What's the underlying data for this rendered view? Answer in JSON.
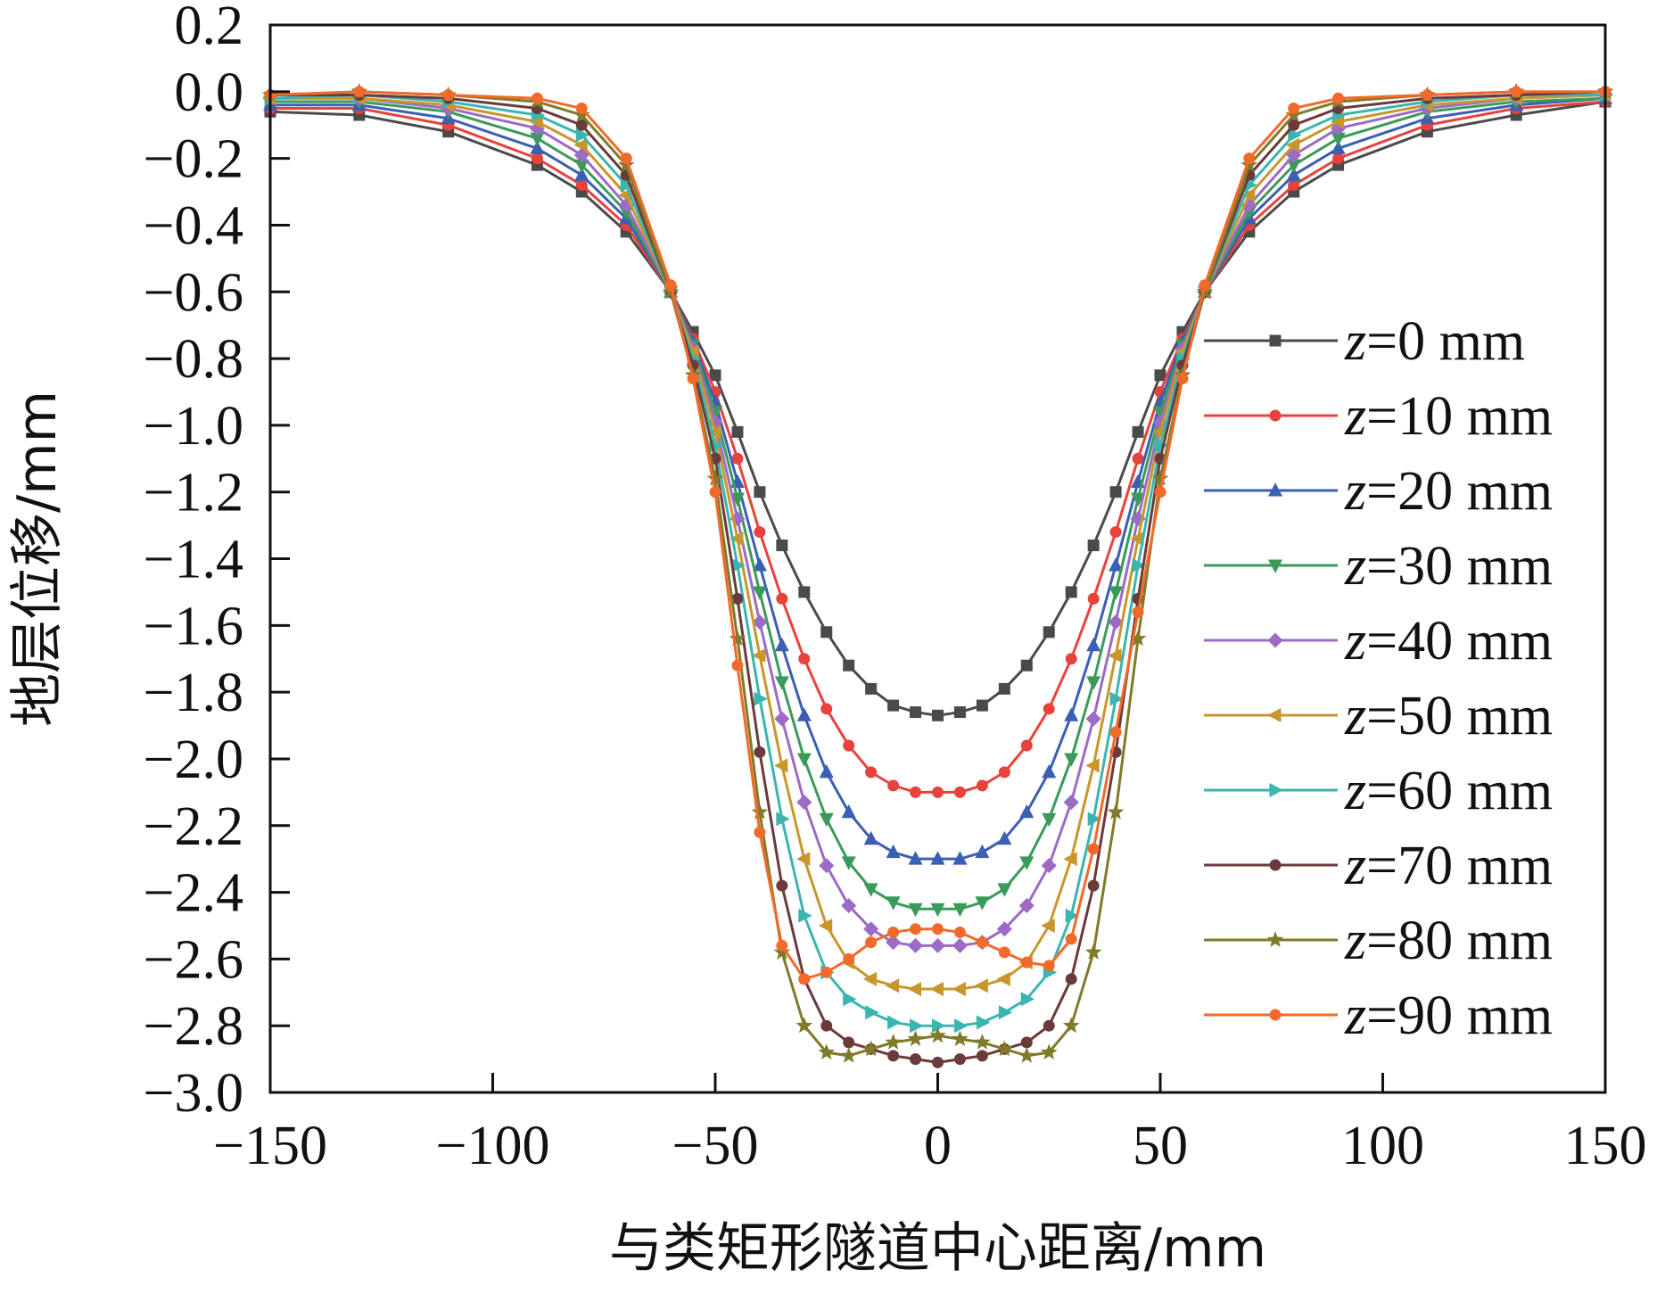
{
  "chart_data": {
    "type": "line",
    "xlabel": "与类矩形隧道中心距离/mm",
    "ylabel": "地层位移/mm",
    "xlim": [
      -150,
      150
    ],
    "ylim": [
      -3.0,
      0.2
    ],
    "x_ticks": [
      -150,
      -100,
      -50,
      0,
      50,
      100,
      150
    ],
    "y_ticks": [
      0.2,
      0.0,
      -0.2,
      -0.4,
      -0.6,
      -0.8,
      -1.0,
      -1.2,
      -1.4,
      -1.6,
      -1.8,
      -2.0,
      -2.2,
      -2.4,
      -2.6,
      -2.8,
      -3.0
    ],
    "x_tick_labels": [
      "−150",
      "−100",
      "−50",
      "0",
      "50",
      "100",
      "150"
    ],
    "y_tick_labels": [
      "0.2",
      "0.0",
      "−0.2",
      "−0.4",
      "−0.6",
      "−0.8",
      "−1.0",
      "−1.2",
      "−1.4",
      "−1.6",
      "−1.8",
      "−2.0",
      "−2.2",
      "−2.4",
      "−2.6",
      "−2.8",
      "−3.0"
    ],
    "grid": false,
    "legend_position": "right",
    "series": [
      {
        "name": "=0 mm",
        "prefix": "z",
        "color": "#4a4a4a",
        "marker": "square",
        "x": [
          -150,
          -130,
          -110,
          -90,
          -80,
          -70,
          -60,
          -55,
          -50,
          -45,
          -40,
          -35,
          -30,
          -25,
          -20,
          -15,
          -10,
          -5,
          0,
          5,
          10,
          15,
          20,
          25,
          30,
          35,
          40,
          45,
          50,
          55,
          60,
          70,
          80,
          90,
          110,
          130,
          150
        ],
        "y": [
          -0.06,
          -0.07,
          -0.12,
          -0.22,
          -0.3,
          -0.42,
          -0.6,
          -0.72,
          -0.85,
          -1.02,
          -1.2,
          -1.36,
          -1.5,
          -1.62,
          -1.72,
          -1.79,
          -1.84,
          -1.86,
          -1.87,
          -1.86,
          -1.84,
          -1.79,
          -1.72,
          -1.62,
          -1.5,
          -1.36,
          -1.2,
          -1.02,
          -0.85,
          -0.72,
          -0.6,
          -0.42,
          -0.3,
          -0.22,
          -0.12,
          -0.07,
          -0.03
        ]
      },
      {
        "name": "=10 mm",
        "prefix": "z",
        "color": "#e8423c",
        "marker": "circle",
        "x": [
          -150,
          -130,
          -110,
          -90,
          -80,
          -70,
          -60,
          -55,
          -50,
          -45,
          -40,
          -35,
          -30,
          -25,
          -20,
          -15,
          -10,
          -5,
          0,
          5,
          10,
          15,
          20,
          25,
          30,
          35,
          40,
          45,
          50,
          55,
          60,
          70,
          80,
          90,
          110,
          130,
          150
        ],
        "y": [
          -0.05,
          -0.05,
          -0.1,
          -0.2,
          -0.28,
          -0.4,
          -0.6,
          -0.74,
          -0.9,
          -1.1,
          -1.32,
          -1.52,
          -1.7,
          -1.85,
          -1.96,
          -2.04,
          -2.08,
          -2.1,
          -2.1,
          -2.1,
          -2.08,
          -2.04,
          -1.96,
          -1.85,
          -1.7,
          -1.52,
          -1.32,
          -1.1,
          -0.9,
          -0.74,
          -0.6,
          -0.4,
          -0.28,
          -0.2,
          -0.1,
          -0.05,
          -0.03
        ]
      },
      {
        "name": "=20 mm",
        "prefix": "z",
        "color": "#3a5fb3",
        "marker": "triangle-up",
        "x": [
          -150,
          -130,
          -110,
          -90,
          -80,
          -70,
          -60,
          -55,
          -50,
          -45,
          -40,
          -35,
          -30,
          -25,
          -20,
          -15,
          -10,
          -5,
          0,
          5,
          10,
          15,
          20,
          25,
          30,
          35,
          40,
          45,
          50,
          55,
          60,
          70,
          80,
          90,
          110,
          130,
          150
        ],
        "y": [
          -0.04,
          -0.04,
          -0.08,
          -0.17,
          -0.25,
          -0.38,
          -0.6,
          -0.75,
          -0.93,
          -1.17,
          -1.42,
          -1.66,
          -1.87,
          -2.04,
          -2.16,
          -2.24,
          -2.28,
          -2.3,
          -2.3,
          -2.3,
          -2.28,
          -2.24,
          -2.16,
          -2.04,
          -1.87,
          -1.66,
          -1.42,
          -1.17,
          -0.93,
          -0.75,
          -0.6,
          -0.38,
          -0.25,
          -0.17,
          -0.08,
          -0.04,
          -0.02
        ]
      },
      {
        "name": "=30 mm",
        "prefix": "z",
        "color": "#3b9a5a",
        "marker": "triangle-down",
        "x": [
          -150,
          -130,
          -110,
          -90,
          -80,
          -70,
          -60,
          -55,
          -50,
          -45,
          -40,
          -35,
          -30,
          -25,
          -20,
          -15,
          -10,
          -5,
          0,
          5,
          10,
          15,
          20,
          25,
          30,
          35,
          40,
          45,
          50,
          55,
          60,
          70,
          80,
          90,
          110,
          130,
          150
        ],
        "y": [
          -0.03,
          -0.03,
          -0.06,
          -0.14,
          -0.22,
          -0.36,
          -0.6,
          -0.76,
          -0.96,
          -1.22,
          -1.5,
          -1.77,
          -2.0,
          -2.18,
          -2.31,
          -2.39,
          -2.43,
          -2.45,
          -2.45,
          -2.45,
          -2.43,
          -2.39,
          -2.31,
          -2.18,
          -2.0,
          -1.77,
          -1.5,
          -1.22,
          -0.96,
          -0.76,
          -0.6,
          -0.36,
          -0.22,
          -0.14,
          -0.06,
          -0.03,
          -0.02
        ]
      },
      {
        "name": "=40 mm",
        "prefix": "z",
        "color": "#9b6bc6",
        "marker": "diamond",
        "x": [
          -150,
          -130,
          -110,
          -90,
          -80,
          -70,
          -60,
          -55,
          -50,
          -45,
          -40,
          -35,
          -30,
          -25,
          -20,
          -15,
          -10,
          -5,
          0,
          5,
          10,
          15,
          20,
          25,
          30,
          35,
          40,
          45,
          50,
          55,
          60,
          70,
          80,
          90,
          110,
          130,
          150
        ],
        "y": [
          -0.02,
          -0.02,
          -0.05,
          -0.11,
          -0.19,
          -0.34,
          -0.6,
          -0.77,
          -0.99,
          -1.28,
          -1.59,
          -1.88,
          -2.13,
          -2.32,
          -2.44,
          -2.51,
          -2.55,
          -2.56,
          -2.56,
          -2.56,
          -2.55,
          -2.51,
          -2.44,
          -2.32,
          -2.13,
          -1.88,
          -1.59,
          -1.28,
          -0.99,
          -0.77,
          -0.6,
          -0.34,
          -0.19,
          -0.11,
          -0.05,
          -0.02,
          -0.01
        ]
      },
      {
        "name": "=50 mm",
        "prefix": "z",
        "color": "#c9962c",
        "marker": "triangle-left",
        "x": [
          -150,
          -130,
          -110,
          -90,
          -80,
          -70,
          -60,
          -55,
          -50,
          -45,
          -40,
          -35,
          -30,
          -25,
          -20,
          -15,
          -10,
          -5,
          0,
          5,
          10,
          15,
          20,
          25,
          30,
          35,
          40,
          45,
          50,
          55,
          60,
          70,
          80,
          90,
          110,
          130,
          150
        ],
        "y": [
          -0.02,
          -0.02,
          -0.04,
          -0.09,
          -0.16,
          -0.31,
          -0.6,
          -0.78,
          -1.02,
          -1.34,
          -1.69,
          -2.02,
          -2.3,
          -2.5,
          -2.61,
          -2.66,
          -2.68,
          -2.69,
          -2.69,
          -2.69,
          -2.68,
          -2.66,
          -2.61,
          -2.5,
          -2.3,
          -2.02,
          -1.69,
          -1.34,
          -1.02,
          -0.78,
          -0.6,
          -0.31,
          -0.16,
          -0.09,
          -0.04,
          -0.02,
          -0.01
        ]
      },
      {
        "name": "=60 mm",
        "prefix": "z",
        "color": "#3bb5b0",
        "marker": "triangle-right",
        "x": [
          -150,
          -130,
          -110,
          -90,
          -80,
          -70,
          -60,
          -55,
          -50,
          -45,
          -40,
          -35,
          -30,
          -25,
          -20,
          -15,
          -10,
          -5,
          0,
          5,
          10,
          15,
          20,
          25,
          30,
          35,
          40,
          45,
          50,
          55,
          60,
          70,
          80,
          90,
          110,
          130,
          150
        ],
        "y": [
          -0.02,
          -0.01,
          -0.03,
          -0.07,
          -0.13,
          -0.28,
          -0.6,
          -0.8,
          -1.06,
          -1.42,
          -1.82,
          -2.18,
          -2.47,
          -2.64,
          -2.72,
          -2.76,
          -2.79,
          -2.8,
          -2.8,
          -2.8,
          -2.79,
          -2.76,
          -2.72,
          -2.64,
          -2.47,
          -2.18,
          -1.82,
          -1.42,
          -1.06,
          -0.8,
          -0.6,
          -0.28,
          -0.13,
          -0.07,
          -0.03,
          -0.01,
          -0.01
        ]
      },
      {
        "name": "=70 mm",
        "prefix": "z",
        "color": "#6b3a3a",
        "marker": "circle",
        "x": [
          -150,
          -130,
          -110,
          -90,
          -80,
          -70,
          -60,
          -55,
          -50,
          -45,
          -40,
          -35,
          -30,
          -25,
          -20,
          -15,
          -10,
          -5,
          0,
          5,
          10,
          15,
          20,
          25,
          30,
          35,
          40,
          45,
          50,
          55,
          60,
          70,
          80,
          90,
          110,
          130,
          150
        ],
        "y": [
          -0.01,
          -0.01,
          -0.02,
          -0.05,
          -0.1,
          -0.25,
          -0.6,
          -0.82,
          -1.1,
          -1.52,
          -1.98,
          -2.38,
          -2.66,
          -2.8,
          -2.85,
          -2.87,
          -2.89,
          -2.9,
          -2.91,
          -2.9,
          -2.89,
          -2.87,
          -2.85,
          -2.8,
          -2.66,
          -2.38,
          -1.98,
          -1.52,
          -1.1,
          -0.82,
          -0.6,
          -0.25,
          -0.1,
          -0.05,
          -0.02,
          -0.01,
          0.0
        ]
      },
      {
        "name": "=80 mm",
        "prefix": "z",
        "color": "#7f7b2a",
        "marker": "star",
        "x": [
          -150,
          -130,
          -110,
          -90,
          -80,
          -70,
          -60,
          -55,
          -50,
          -45,
          -40,
          -35,
          -30,
          -25,
          -20,
          -15,
          -10,
          -5,
          0,
          5,
          10,
          15,
          20,
          25,
          30,
          35,
          40,
          45,
          50,
          55,
          60,
          70,
          80,
          90,
          110,
          130,
          150
        ],
        "y": [
          -0.01,
          0.0,
          -0.01,
          -0.03,
          -0.07,
          -0.22,
          -0.6,
          -0.85,
          -1.16,
          -1.64,
          -2.16,
          -2.58,
          -2.8,
          -2.88,
          -2.89,
          -2.87,
          -2.85,
          -2.84,
          -2.83,
          -2.84,
          -2.85,
          -2.87,
          -2.89,
          -2.88,
          -2.8,
          -2.58,
          -2.16,
          -1.64,
          -1.16,
          -0.85,
          -0.6,
          -0.22,
          -0.07,
          -0.03,
          -0.01,
          0.0,
          0.0
        ]
      },
      {
        "name": "=90 mm",
        "prefix": "z",
        "color": "#f26a2a",
        "marker": "circle",
        "x": [
          -150,
          -130,
          -110,
          -90,
          -80,
          -70,
          -60,
          -55,
          -50,
          -45,
          -40,
          -35,
          -30,
          -25,
          -20,
          -15,
          -10,
          -5,
          0,
          5,
          10,
          15,
          20,
          25,
          30,
          35,
          40,
          45,
          50,
          55,
          60,
          70,
          80,
          90,
          110,
          130,
          150
        ],
        "y": [
          -0.01,
          0.0,
          -0.01,
          -0.02,
          -0.05,
          -0.2,
          -0.58,
          -0.86,
          -1.2,
          -1.72,
          -2.22,
          -2.56,
          -2.66,
          -2.64,
          -2.6,
          -2.55,
          -2.52,
          -2.51,
          -2.51,
          -2.52,
          -2.55,
          -2.58,
          -2.61,
          -2.62,
          -2.54,
          -2.27,
          -1.92,
          -1.56,
          -1.2,
          -0.86,
          -0.58,
          -0.2,
          -0.05,
          -0.02,
          -0.01,
          0.0,
          0.0
        ]
      }
    ]
  }
}
